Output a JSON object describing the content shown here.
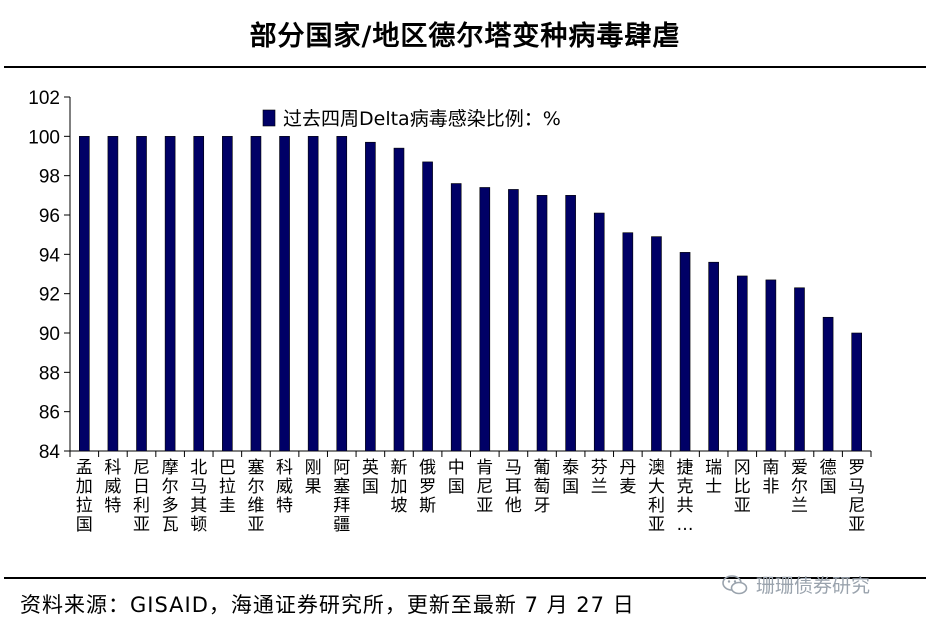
{
  "title": "部分国家/地区德尔塔变种病毒肆虐",
  "source": "资料来源：GISAID，海通证券研究所，更新至最新 7 月 27 日",
  "watermark": "珊珊债券研究",
  "chart_data": {
    "type": "bar",
    "legend": "过去四周Delta病毒感染比例：%",
    "legend_position": "top-center",
    "bar_color": "#000066",
    "ylim": [
      84,
      102
    ],
    "yticks": [
      84,
      86,
      88,
      90,
      92,
      94,
      96,
      98,
      100,
      102
    ],
    "categories": [
      "孟加拉国",
      "科威特",
      "尼日利亚",
      "摩尔多瓦",
      "北马其顿",
      "巴拉圭",
      "塞尔维亚",
      "科威特",
      "刚果",
      "阿塞拜疆",
      "英国",
      "新加坡",
      "俄罗斯",
      "中国",
      "肯尼亚",
      "马耳他",
      "葡萄牙",
      "泰国",
      "芬兰",
      "丹麦",
      "澳大利亚",
      "捷克共…",
      "瑞士",
      "冈比亚",
      "南非",
      "爱尔兰",
      "德国",
      "罗马尼亚"
    ],
    "values": [
      100,
      100,
      100,
      100,
      100,
      100,
      100,
      100,
      100,
      100,
      99.7,
      99.4,
      98.7,
      97.6,
      97.4,
      97.3,
      97.0,
      97.0,
      96.1,
      95.1,
      94.9,
      94.1,
      93.6,
      92.9,
      92.7,
      92.3,
      90.8,
      90.0
    ],
    "grid": false
  }
}
